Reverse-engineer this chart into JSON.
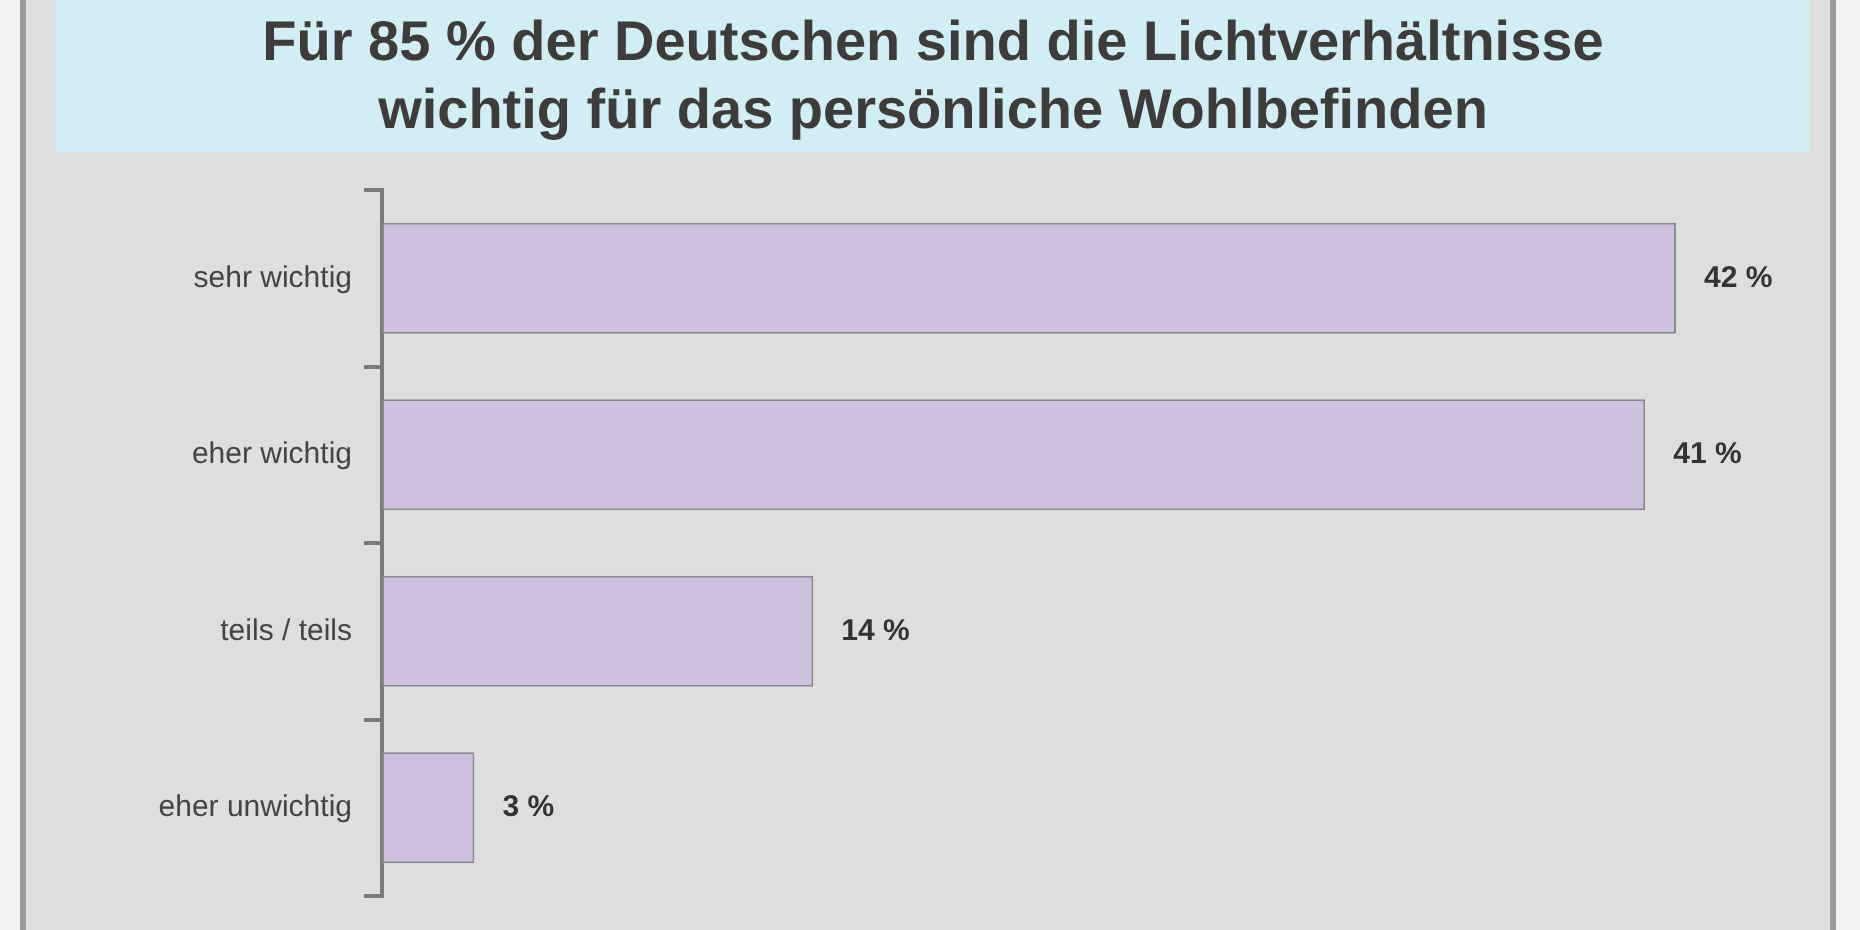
{
  "chart_data": {
    "type": "bar",
    "orientation": "horizontal",
    "title": "Für 85 % der Deutschen sind die Lichtverhältnisse wichtig für das persönliche Wohlbefinden",
    "categories": [
      "sehr wichtig",
      "eher wichtig",
      "teils / teils",
      "eher unwichtig"
    ],
    "values": [
      42,
      41,
      14,
      3
    ],
    "value_labels": [
      "42 %",
      "41 %",
      "14 %",
      "3 %"
    ],
    "color": "#cdc1dd"
  }
}
